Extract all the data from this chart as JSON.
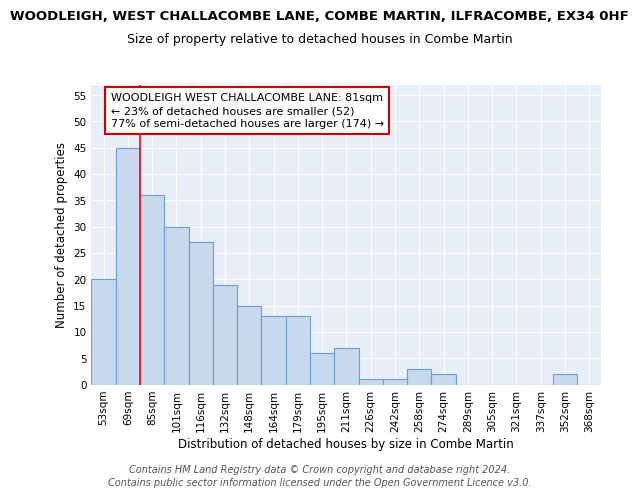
{
  "title": "WOODLEIGH, WEST CHALLACOMBE LANE, COMBE MARTIN, ILFRACOMBE, EX34 0HF",
  "subtitle": "Size of property relative to detached houses in Combe Martin",
  "xlabel": "Distribution of detached houses by size in Combe Martin",
  "ylabel": "Number of detached properties",
  "bins": [
    "53sqm",
    "69sqm",
    "85sqm",
    "101sqm",
    "116sqm",
    "132sqm",
    "148sqm",
    "164sqm",
    "179sqm",
    "195sqm",
    "211sqm",
    "226sqm",
    "242sqm",
    "258sqm",
    "274sqm",
    "289sqm",
    "305sqm",
    "321sqm",
    "337sqm",
    "352sqm",
    "368sqm"
  ],
  "values": [
    20,
    45,
    36,
    30,
    27,
    19,
    15,
    13,
    13,
    6,
    7,
    1,
    1,
    3,
    2,
    0,
    0,
    0,
    0,
    2,
    0
  ],
  "bar_color": "#c8d8ee",
  "bar_edge_color": "#6b9fd4",
  "red_line_x": 1.5,
  "ylim": [
    0,
    57
  ],
  "yticks": [
    0,
    5,
    10,
    15,
    20,
    25,
    30,
    35,
    40,
    45,
    50,
    55
  ],
  "annotation_box_text": "WOODLEIGH WEST CHALLACOMBE LANE: 81sqm\n← 23% of detached houses are smaller (52)\n77% of semi-detached houses are larger (174) →",
  "annotation_box_color": "#ffffff",
  "annotation_box_edgecolor": "#cc0000",
  "footer_line1": "Contains HM Land Registry data © Crown copyright and database right 2024.",
  "footer_line2": "Contains public sector information licensed under the Open Government Licence v3.0.",
  "fig_background_color": "#ffffff",
  "plot_background_color": "#e8eef8",
  "grid_color": "#ffffff",
  "title_fontsize": 9.5,
  "subtitle_fontsize": 9,
  "xlabel_fontsize": 8.5,
  "ylabel_fontsize": 8.5,
  "tick_fontsize": 7.5,
  "annotation_fontsize": 8,
  "footer_fontsize": 7
}
